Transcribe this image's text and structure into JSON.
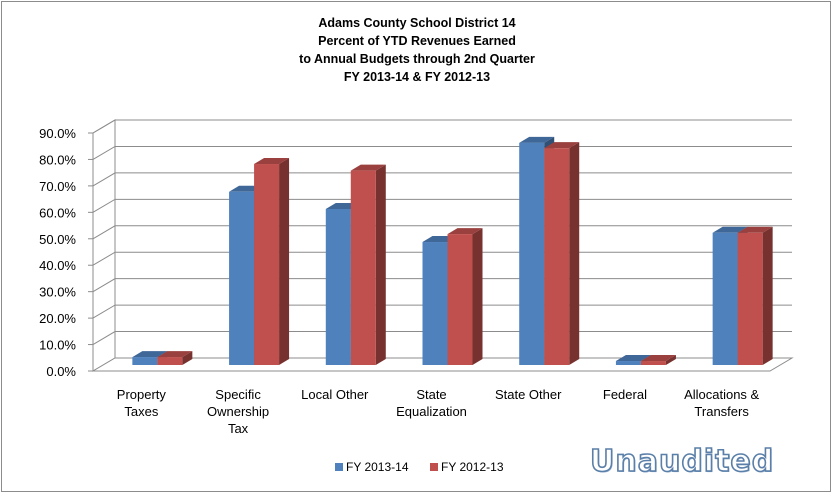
{
  "chart_data": {
    "type": "bar",
    "title_lines": [
      "Adams County School District 14",
      "Percent of YTD Revenues Earned",
      "to Annual Budgets through 2nd Quarter",
      "FY 2013-14 & FY 2012-13"
    ],
    "categories": [
      [
        "Property",
        "Taxes"
      ],
      [
        "Specific",
        "Ownership",
        "Tax"
      ],
      [
        "Local Other"
      ],
      [
        "State",
        "Equalization"
      ],
      [
        "State Other"
      ],
      [
        "Federal"
      ],
      [
        "Allocations &",
        "Transfers"
      ]
    ],
    "series": [
      {
        "name": "FY 2013-14",
        "color": "#4f81bd",
        "values": [
          3.0,
          65.5,
          59.0,
          46.5,
          84.0,
          1.5,
          50.0
        ]
      },
      {
        "name": "FY 2012-13",
        "color": "#c0504d",
        "values": [
          3.0,
          76.0,
          73.5,
          49.5,
          82.0,
          1.5,
          50.0
        ]
      }
    ],
    "ylim": [
      0,
      90
    ],
    "yticks": [
      "0.0%",
      "10.0%",
      "20.0%",
      "30.0%",
      "40.0%",
      "50.0%",
      "60.0%",
      "70.0%",
      "80.0%",
      "90.0%"
    ],
    "grid": true,
    "legend_position": "bottom"
  },
  "watermark": "Unaudited"
}
